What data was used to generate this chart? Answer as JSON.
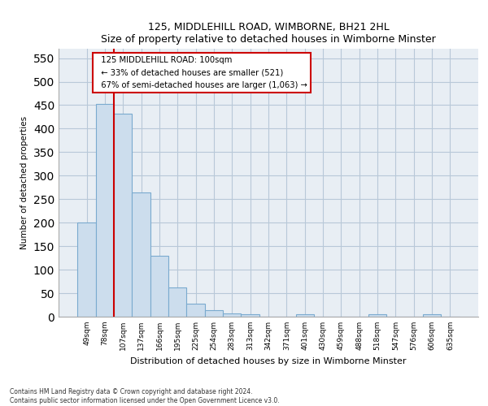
{
  "title": "125, MIDDLEHILL ROAD, WIMBORNE, BH21 2HL",
  "subtitle": "Size of property relative to detached houses in Wimborne Minster",
  "xlabel": "Distribution of detached houses by size in Wimborne Minster",
  "ylabel": "Number of detached properties",
  "footer_line1": "Contains HM Land Registry data © Crown copyright and database right 2024.",
  "footer_line2": "Contains public sector information licensed under the Open Government Licence v3.0.",
  "bar_labels": [
    "49sqm",
    "78sqm",
    "107sqm",
    "137sqm",
    "166sqm",
    "195sqm",
    "225sqm",
    "254sqm",
    "283sqm",
    "313sqm",
    "342sqm",
    "371sqm",
    "401sqm",
    "430sqm",
    "459sqm",
    "488sqm",
    "518sqm",
    "547sqm",
    "576sqm",
    "606sqm",
    "635sqm"
  ],
  "bar_values": [
    200,
    452,
    432,
    265,
    130,
    62,
    28,
    13,
    7,
    5,
    0,
    0,
    6,
    0,
    0,
    0,
    5,
    0,
    0,
    5,
    0
  ],
  "bar_color": "#ccdded",
  "bar_edge_color": "#7aaacf",
  "ylim": [
    0,
    570
  ],
  "yticks": [
    0,
    50,
    100,
    150,
    200,
    250,
    300,
    350,
    400,
    450,
    500,
    550
  ],
  "annotation_line1": "  125 MIDDLEHILL ROAD: 100sqm",
  "annotation_line2": "  ← 33% of detached houses are smaller (521)",
  "annotation_line3": "  67% of semi-detached houses are larger (1,063) →",
  "vline_x_index": 2.0,
  "bg_color": "#e8eef4",
  "grid_color": "#b8c8d8"
}
